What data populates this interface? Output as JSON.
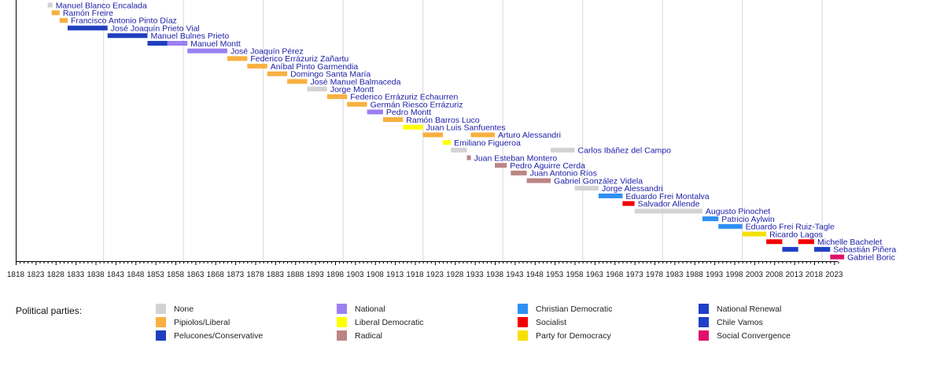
{
  "chart_data": {
    "type": "timeline",
    "xlim": [
      1818,
      2024
    ],
    "tick_labels": [
      "1818",
      "1823",
      "1828",
      "1833",
      "1838",
      "1843",
      "1848",
      "1853",
      "1858",
      "1863",
      "1868",
      "1873",
      "1878",
      "1883",
      "1888",
      "1893",
      "1898",
      "1903",
      "1908",
      "1913",
      "1918",
      "1923",
      "1928",
      "1933",
      "1938",
      "1943",
      "1948",
      "1953",
      "1958",
      "1963",
      "1968",
      "1973",
      "1978",
      "1983",
      "1988",
      "1993",
      "1998",
      "2003",
      "2008",
      "2013",
      "2018",
      "2023"
    ],
    "grid_years": [
      1840,
      1860,
      1880,
      1900,
      1920,
      1940,
      1960,
      1980,
      2000,
      2020
    ],
    "parties": {
      "none": {
        "name": "None",
        "color": "#d3d3d3"
      },
      "liberal": {
        "name": "Pipiolos/Liberal",
        "color": "#f8b040"
      },
      "conservative": {
        "name": "Pelucones/Conservative",
        "color": "#1f3fbf"
      },
      "national": {
        "name": "National",
        "color": "#9a80f0"
      },
      "libdem": {
        "name": "Liberal Democratic",
        "color": "#ffff00"
      },
      "radical": {
        "name": "Radical",
        "color": "#bc8585"
      },
      "cd": {
        "name": "Christian Democratic",
        "color": "#2e90f5"
      },
      "socialist": {
        "name": "Socialist",
        "color": "#f20000"
      },
      "ppd": {
        "name": "Party for Democracy",
        "color": "#f5e000"
      },
      "rn": {
        "name": "National Renewal",
        "color": "#1f3fc8"
      },
      "vamos": {
        "name": "Chile Vamos",
        "color": "#2040c8"
      },
      "convergence": {
        "name": "Social Convergence",
        "color": "#e0106b"
      }
    },
    "presidents": [
      {
        "name": "Manuel Blanco Encalada",
        "terms": [
          [
            1826,
            1827.2,
            "none"
          ]
        ]
      },
      {
        "name": "Ramón Freire",
        "terms": [
          [
            1827,
            1829,
            "liberal"
          ]
        ]
      },
      {
        "name": "Francisco Antonio Pinto Díaz",
        "terms": [
          [
            1829,
            1831,
            "liberal"
          ]
        ]
      },
      {
        "name": "José Joaquín Prieto Vial",
        "terms": [
          [
            1831,
            1841,
            "conservative"
          ]
        ]
      },
      {
        "name": "Manuel Bulnes Prieto",
        "terms": [
          [
            1841,
            1851,
            "conservative"
          ]
        ]
      },
      {
        "name": "Manuel Montt",
        "terms": [
          [
            1851,
            1856,
            "conservative"
          ],
          [
            1856,
            1861,
            "national"
          ]
        ]
      },
      {
        "name": "José Joaquín Pérez",
        "terms": [
          [
            1861,
            1871,
            "national"
          ]
        ]
      },
      {
        "name": "Federico Errázuriz Zañartu",
        "terms": [
          [
            1871,
            1876,
            "liberal"
          ]
        ]
      },
      {
        "name": "Aníbal Pinto Garmendia",
        "terms": [
          [
            1876,
            1881,
            "liberal"
          ]
        ]
      },
      {
        "name": "Domingo Santa María",
        "terms": [
          [
            1881,
            1886,
            "liberal"
          ]
        ]
      },
      {
        "name": "José Manuel Balmaceda",
        "terms": [
          [
            1886,
            1891,
            "liberal"
          ]
        ]
      },
      {
        "name": "Jorge Montt",
        "terms": [
          [
            1891,
            1896,
            "none"
          ]
        ]
      },
      {
        "name": "Federico Errázuriz Echaurren",
        "terms": [
          [
            1896,
            1901,
            "liberal"
          ]
        ]
      },
      {
        "name": "Germán Riesco Errázuriz",
        "terms": [
          [
            1901,
            1906,
            "liberal"
          ]
        ]
      },
      {
        "name": "Pedro Montt",
        "terms": [
          [
            1906,
            1910,
            "national"
          ]
        ]
      },
      {
        "name": "Ramón Barros Luco",
        "terms": [
          [
            1910,
            1915,
            "liberal"
          ]
        ]
      },
      {
        "name": "Juan Luis Sanfuentes",
        "terms": [
          [
            1915,
            1920,
            "libdem"
          ]
        ]
      },
      {
        "name": "Arturo Alessandri",
        "terms": [
          [
            1920,
            1925,
            "liberal"
          ],
          [
            1932,
            1938,
            "liberal"
          ]
        ]
      },
      {
        "name": "Emiliano Figueroa",
        "terms": [
          [
            1925,
            1927,
            "libdem"
          ]
        ]
      },
      {
        "name": "Carlos Ibáñez del Campo",
        "terms": [
          [
            1927,
            1931,
            "none"
          ],
          [
            1952,
            1958,
            "none"
          ]
        ]
      },
      {
        "name": "Juan Esteban Montero",
        "terms": [
          [
            1931,
            1932,
            "radical"
          ]
        ]
      },
      {
        "name": "Pedro Aguirre Cerda",
        "terms": [
          [
            1938,
            1941,
            "radical"
          ]
        ]
      },
      {
        "name": "Juan Antonio Ríos",
        "terms": [
          [
            1942,
            1946,
            "radical"
          ]
        ]
      },
      {
        "name": "Gabriel González Videla",
        "terms": [
          [
            1946,
            1952,
            "radical"
          ]
        ]
      },
      {
        "name": "Jorge Alessandri",
        "terms": [
          [
            1958,
            1964,
            "none"
          ]
        ]
      },
      {
        "name": "Eduardo Frei Montalva",
        "terms": [
          [
            1964,
            1970,
            "cd"
          ]
        ]
      },
      {
        "name": "Salvador Allende",
        "terms": [
          [
            1970,
            1973,
            "socialist"
          ]
        ]
      },
      {
        "name": "Augusto Pinochet",
        "terms": [
          [
            1973,
            1990,
            "none"
          ]
        ]
      },
      {
        "name": "Patricio Aylwin",
        "terms": [
          [
            1990,
            1994,
            "cd"
          ]
        ]
      },
      {
        "name": "Eduardo Frei Ruiz-Tagle",
        "terms": [
          [
            1994,
            2000,
            "cd"
          ]
        ]
      },
      {
        "name": "Ricardo Lagos",
        "terms": [
          [
            2000,
            2006,
            "ppd"
          ]
        ]
      },
      {
        "name": "Michelle Bachelet",
        "terms": [
          [
            2006,
            2010,
            "socialist"
          ],
          [
            2014,
            2018,
            "socialist"
          ]
        ]
      },
      {
        "name": "Sebastián Piñera",
        "terms": [
          [
            2010,
            2014,
            "rn"
          ],
          [
            2018,
            2022,
            "vamos"
          ]
        ]
      },
      {
        "name": "Gabriel Boric",
        "terms": [
          [
            2022,
            2025.5,
            "convergence"
          ]
        ]
      }
    ]
  },
  "legend": {
    "title": "Political parties:",
    "columns": [
      [
        "none",
        "liberal",
        "conservative"
      ],
      [
        "national",
        "libdem",
        "radical"
      ],
      [
        "cd",
        "socialist",
        "ppd"
      ],
      [
        "rn",
        "vamos",
        "convergence"
      ]
    ]
  }
}
